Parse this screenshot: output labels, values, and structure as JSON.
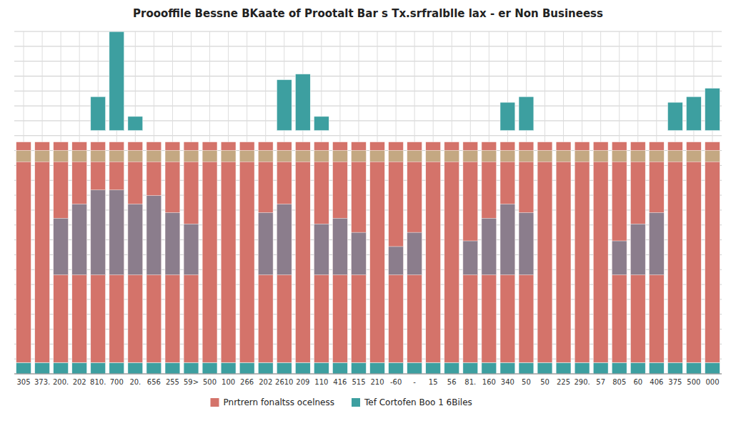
{
  "chart_data": {
    "type": "bar",
    "title": "Proooffile Bessne BKaate of Prootalt Bar s Tx.srfralblle lax - er Non Busineess",
    "categories": [
      "305",
      "373.",
      "200.",
      "202",
      "810.",
      "700",
      "20.",
      "656",
      "255",
      "59>",
      "500",
      "100",
      "266",
      "202",
      "2610",
      "209",
      "110",
      "416",
      "515",
      "210",
      "-60",
      "-",
      "15",
      "56",
      "81.",
      "160",
      "340",
      "50",
      "50",
      "225",
      "290.",
      "57",
      "805",
      "60",
      "406",
      "375",
      "500",
      "000"
    ],
    "series": [
      {
        "color": "#3d9fa0",
        "values": [
          0.04,
          0.04,
          0.04,
          0.04,
          0.04,
          0.04,
          0.04,
          0.04,
          0.04,
          0.04,
          0.04,
          0.04,
          0.04,
          0.04,
          0.04,
          0.04,
          0.04,
          0.04,
          0.04,
          0.04,
          0.04,
          0.04,
          0.04,
          0.04,
          0.04,
          0.04,
          0.04,
          0.04,
          0.04,
          0.04,
          0.04,
          0.04,
          0.04,
          0.04,
          0.04,
          0.04,
          0.04,
          0.04
        ]
      },
      {
        "name": "Pnrtrern fonaltss ocelness",
        "color": "#d4736a",
        "values": [
          0.78,
          0.78,
          0.78,
          0.78,
          0.78,
          0.78,
          0.78,
          0.78,
          0.78,
          0.78,
          0.78,
          0.78,
          0.78,
          0.78,
          0.78,
          0.78,
          0.78,
          0.78,
          0.78,
          0.78,
          0.78,
          0.78,
          0.78,
          0.78,
          0.78,
          0.78,
          0.78,
          0.78,
          0.78,
          0.78,
          0.78,
          0.78,
          0.78,
          0.78,
          0.78,
          0.78,
          0.78,
          0.78
        ],
        "bottoms": [
          0.04,
          0.04,
          0.04,
          0.04,
          0.04,
          0.04,
          0.04,
          0.04,
          0.04,
          0.04,
          0.04,
          0.04,
          0.04,
          0.04,
          0.04,
          0.04,
          0.04,
          0.04,
          0.04,
          0.04,
          0.04,
          0.04,
          0.04,
          0.04,
          0.04,
          0.04,
          0.04,
          0.04,
          0.04,
          0.04,
          0.04,
          0.04,
          0.04,
          0.04,
          0.04,
          0.04,
          0.04,
          0.04
        ]
      },
      {
        "color": "#8b7d8c",
        "values": [
          0.0,
          0.0,
          0.2,
          0.25,
          0.3,
          0.3,
          0.25,
          0.28,
          0.22,
          0.18,
          0.0,
          0.0,
          0.0,
          0.22,
          0.25,
          0.0,
          0.18,
          0.2,
          0.15,
          0.0,
          0.1,
          0.15,
          0.0,
          0.0,
          0.12,
          0.2,
          0.25,
          0.22,
          0.0,
          0.0,
          0.0,
          0.0,
          0.12,
          0.18,
          0.22,
          0.0,
          0.0,
          0.0
        ],
        "bottoms": [
          0.35,
          0.35,
          0.35,
          0.35,
          0.35,
          0.35,
          0.35,
          0.35,
          0.35,
          0.35,
          0.35,
          0.35,
          0.35,
          0.35,
          0.35,
          0.35,
          0.35,
          0.35,
          0.35,
          0.35,
          0.35,
          0.35,
          0.35,
          0.35,
          0.35,
          0.35,
          0.35,
          0.35,
          0.35,
          0.35,
          0.35,
          0.35,
          0.35,
          0.35,
          0.35,
          0.35,
          0.35,
          0.35
        ]
      },
      {
        "color": "#c4a882",
        "values": [
          0.04,
          0.04,
          0.04,
          0.04,
          0.04,
          0.04,
          0.04,
          0.04,
          0.04,
          0.04,
          0.04,
          0.04,
          0.04,
          0.04,
          0.04,
          0.04,
          0.04,
          0.04,
          0.04,
          0.04,
          0.04,
          0.04,
          0.04,
          0.04,
          0.04,
          0.04,
          0.04,
          0.04,
          0.04,
          0.04,
          0.04,
          0.04,
          0.04,
          0.04,
          0.04,
          0.04,
          0.04,
          0.04
        ],
        "bottoms": [
          0.75,
          0.75,
          0.75,
          0.75,
          0.75,
          0.75,
          0.75,
          0.75,
          0.75,
          0.75,
          0.75,
          0.75,
          0.75,
          0.75,
          0.75,
          0.75,
          0.75,
          0.75,
          0.75,
          0.75,
          0.75,
          0.75,
          0.75,
          0.75,
          0.75,
          0.75,
          0.75,
          0.75,
          0.75,
          0.75,
          0.75,
          0.75,
          0.75,
          0.75,
          0.75,
          0.75,
          0.75,
          0.75
        ]
      },
      {
        "name": "Tef Cortofen Boo 1 6Biles",
        "color": "#3d9fa0",
        "values": [
          0.0,
          0.0,
          0.0,
          0.0,
          0.12,
          0.35,
          0.05,
          0.0,
          0.0,
          0.0,
          0.0,
          0.0,
          0.0,
          0.0,
          0.18,
          0.2,
          0.05,
          0.0,
          0.0,
          0.0,
          0.0,
          0.0,
          0.0,
          0.0,
          0.0,
          0.0,
          0.1,
          0.12,
          0.0,
          0.0,
          0.0,
          0.0,
          0.0,
          0.0,
          0.0,
          0.1,
          0.12,
          0.15
        ],
        "bottoms": [
          0.86,
          0.86,
          0.86,
          0.86,
          0.86,
          0.86,
          0.86,
          0.86,
          0.86,
          0.86,
          0.86,
          0.86,
          0.86,
          0.86,
          0.86,
          0.86,
          0.86,
          0.86,
          0.86,
          0.86,
          0.86,
          0.86,
          0.86,
          0.86,
          0.86,
          0.86,
          0.86,
          0.86,
          0.86,
          0.86,
          0.86,
          0.86,
          0.86,
          0.86,
          0.86,
          0.86,
          0.86,
          0.86
        ]
      }
    ],
    "ylim": [
      0,
      1.2105263157894737
    ],
    "yticks": [
      0,
      0.05263157894736842,
      0.10526315789473684,
      0.15789473684210525,
      0.21052631578947367,
      0.2631578947368421,
      0.3157894736842105,
      0.3684210526315789,
      0.42105263157894735,
      0.47368421052631576,
      0.5263157894736842,
      0.5789473684210527,
      0.631578947368421,
      0.6842105263157894,
      0.7368421052631579,
      0.7894736842105263,
      0.8421052631578947,
      0.894736842105263,
      0.9473684210526315,
      1,
      1.0526315789473684,
      1.1052631578947367,
      1.1578947368421053,
      1.2105263157894737
    ],
    "tick_labels": "x",
    "grid": true,
    "legend": "bottom"
  }
}
